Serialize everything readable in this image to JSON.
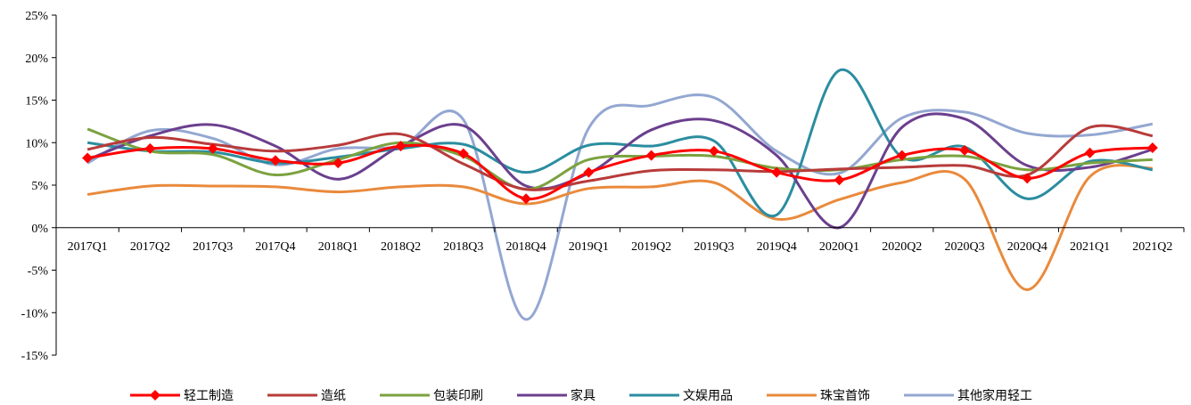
{
  "chart_data": {
    "type": "line",
    "categories": [
      "2017Q1",
      "2017Q2",
      "2017Q3",
      "2017Q4",
      "2018Q1",
      "2018Q2",
      "2018Q3",
      "2018Q4",
      "2019Q1",
      "2019Q2",
      "2019Q3",
      "2019Q4",
      "2020Q1",
      "2020Q2",
      "2020Q3",
      "2020Q4",
      "2021Q1",
      "2021Q2"
    ],
    "ylim": [
      -15,
      25
    ],
    "yticks": [
      "25%",
      "20%",
      "15%",
      "10%",
      "5%",
      "0%",
      "-5%",
      "-10%",
      "-15%"
    ],
    "grid": false,
    "legend_position": "bottom",
    "series": [
      {
        "name": "轻工制造",
        "color": "#ff0000",
        "marker": "diamond",
        "values": [
          8.2,
          9.3,
          9.3,
          7.9,
          7.6,
          9.6,
          8.7,
          3.4,
          6.5,
          8.5,
          9.0,
          6.5,
          5.6,
          8.5,
          9.1,
          5.8,
          8.8,
          9.4
        ]
      },
      {
        "name": "造纸",
        "color": "#b83b3b",
        "marker": "none",
        "values": [
          9.2,
          10.6,
          9.8,
          9.0,
          9.7,
          11.0,
          7.5,
          4.5,
          5.5,
          6.7,
          6.8,
          6.6,
          6.9,
          7.1,
          7.3,
          6.2,
          11.8,
          10.8
        ]
      },
      {
        "name": "包装印刷",
        "color": "#7ba23f",
        "marker": "none",
        "values": [
          11.6,
          9.0,
          8.6,
          6.2,
          8.0,
          10.0,
          8.4,
          4.5,
          8.0,
          8.4,
          8.4,
          7.0,
          6.8,
          8.0,
          8.4,
          6.8,
          7.6,
          8.0
        ]
      },
      {
        "name": "家具",
        "color": "#6b3f8e",
        "marker": "none",
        "values": [
          8.0,
          10.8,
          12.1,
          9.6,
          5.7,
          9.6,
          12.0,
          4.9,
          6.4,
          11.5,
          12.6,
          8.5,
          0.0,
          11.8,
          12.8,
          7.3,
          7.1,
          9.2
        ]
      },
      {
        "name": "文娱用品",
        "color": "#2b8da0",
        "marker": "none",
        "values": [
          10.0,
          9.0,
          8.9,
          7.6,
          8.3,
          9.3,
          9.8,
          6.5,
          9.7,
          9.6,
          10.2,
          1.5,
          18.5,
          8.3,
          9.5,
          3.4,
          7.8,
          6.8
        ]
      },
      {
        "name": "珠宝首饰",
        "color": "#e98a3c",
        "marker": "none",
        "values": [
          3.9,
          4.9,
          4.9,
          4.8,
          4.2,
          4.8,
          4.8,
          2.8,
          4.6,
          4.8,
          5.3,
          1.0,
          3.3,
          5.3,
          5.7,
          -7.3,
          6.0,
          7.0
        ]
      },
      {
        "name": "其他家用轻工",
        "color": "#93a7d1",
        "marker": "none",
        "values": [
          7.6,
          11.4,
          10.5,
          7.4,
          9.3,
          9.6,
          12.7,
          -10.8,
          11.7,
          14.4,
          15.3,
          9.0,
          6.4,
          12.9,
          13.6,
          11.1,
          10.9,
          12.2
        ]
      }
    ]
  }
}
